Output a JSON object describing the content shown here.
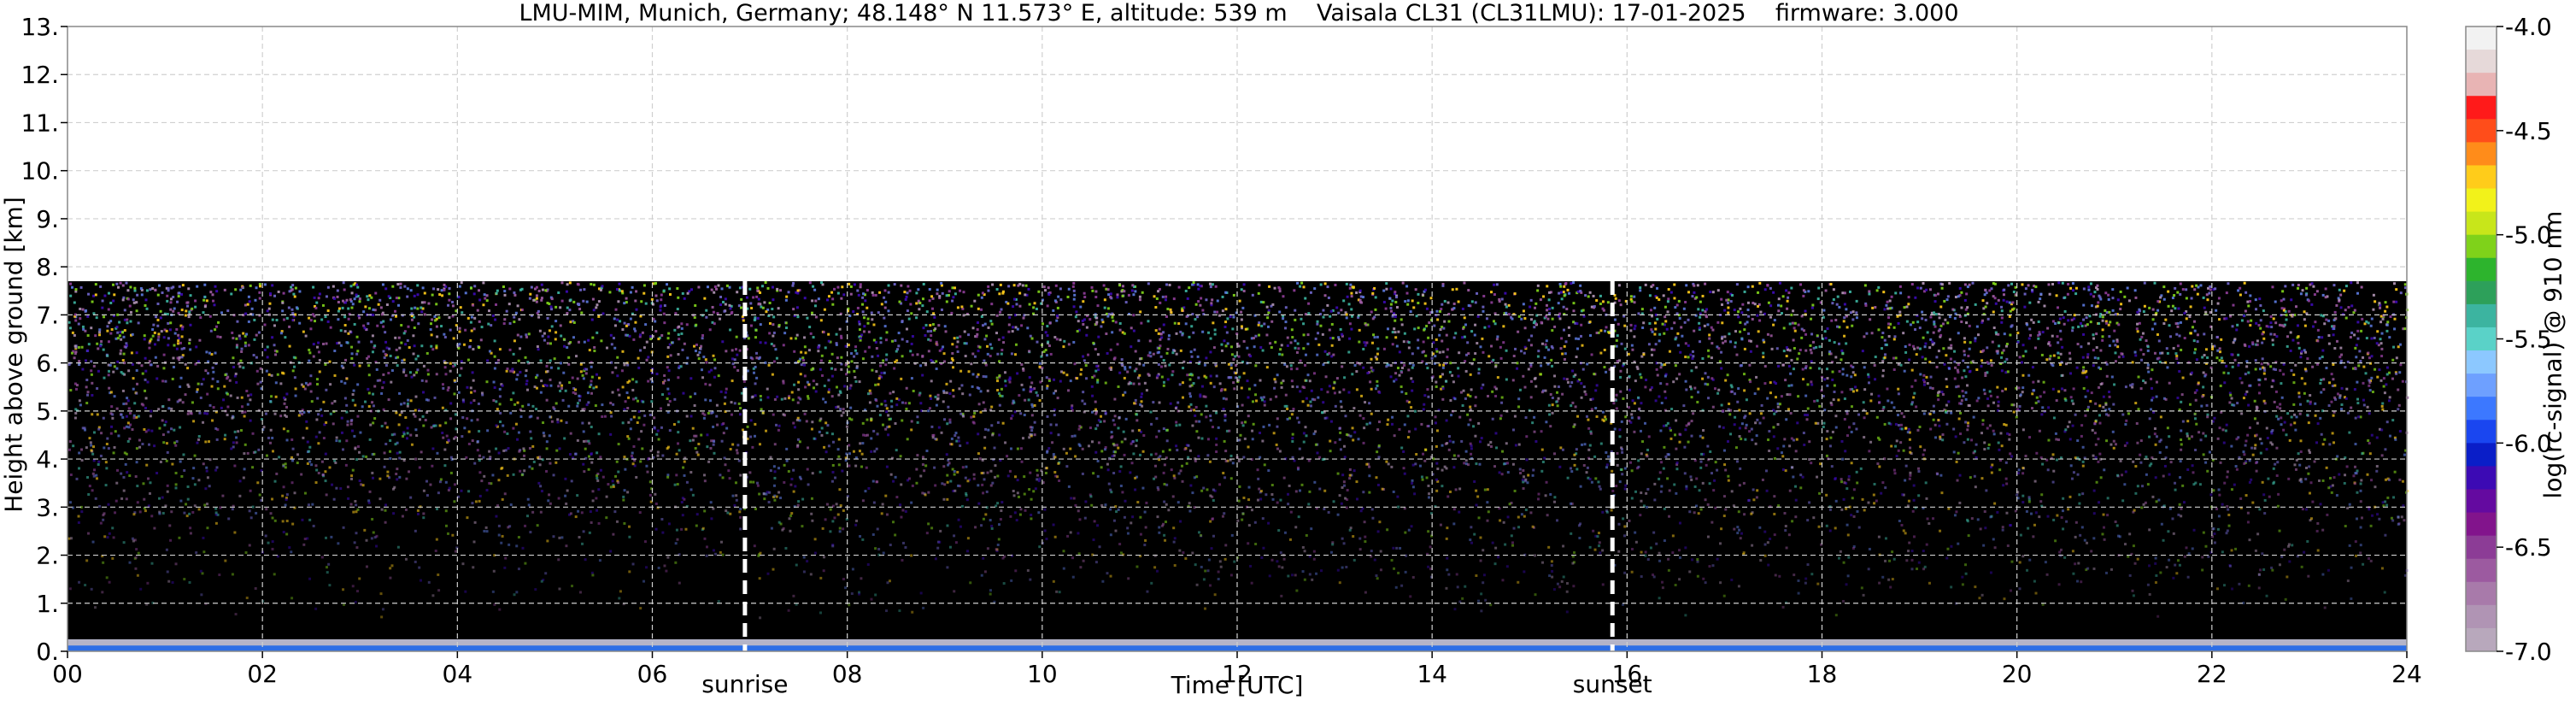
{
  "chart_data": {
    "type": "heatmap",
    "title": "LMU-MIM, Munich, Germany; 48.148° N 11.573° E, altitude: 539 m    Vaisala CL31 (CL31LMU): 17-01-2025    firmware: 3.000",
    "xlabel": "Time [UTC]",
    "ylabel": "Height above ground [km]",
    "colorbar_label": "log(rc-signal) @ 910 nm",
    "xlim": [
      0,
      24
    ],
    "ylim": [
      0,
      13
    ],
    "x_ticks": [
      "00",
      "02",
      "04",
      "06",
      "08",
      "10",
      "12",
      "14",
      "16",
      "18",
      "20",
      "22",
      "24"
    ],
    "y_ticks": [
      "0.",
      "1.",
      "2.",
      "3.",
      "4.",
      "5.",
      "6.",
      "7.",
      "8.",
      "9.",
      "10.",
      "11.",
      "12.",
      "13."
    ],
    "colorbar_ticks": [
      "-4.0",
      "-4.5",
      "-5.0",
      "-5.5",
      "-6.0",
      "-6.5",
      "-7.0"
    ],
    "colorbar_range": [
      -7.0,
      -4.0
    ],
    "colorbar_colors": [
      "#f2f2f2",
      "#e6d9d9",
      "#e8b4b4",
      "#ff1a1a",
      "#ff4d1a",
      "#ff8c1a",
      "#ffcc1a",
      "#f2f21a",
      "#c8e61a",
      "#7fd21a",
      "#2db42d",
      "#2da05a",
      "#3cb4a0",
      "#5ad2c8",
      "#8cc8ff",
      "#6ea0ff",
      "#3c78ff",
      "#1a46f0",
      "#0a1ec8",
      "#3c0ab4",
      "#640aa0",
      "#82148c",
      "#8c3c96",
      "#9c5aa0",
      "#a87aaa",
      "#b094b4",
      "#b8a8bc"
    ],
    "data_top_height_km": 7.7,
    "events": [
      {
        "label": "sunrise",
        "time": 6.95
      },
      {
        "label": "sunset",
        "time": 15.85
      }
    ],
    "grid": true,
    "background": "#000000"
  }
}
